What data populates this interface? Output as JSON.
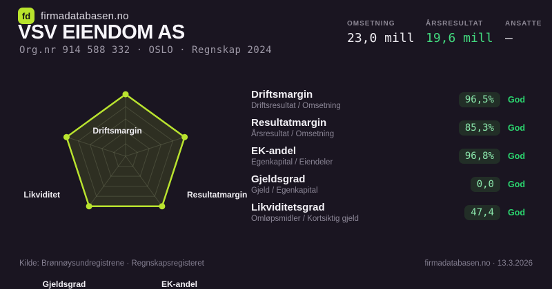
{
  "brand": {
    "logo_text": "fd",
    "site": "firmadatabasen.no"
  },
  "header": {
    "title": "VSV EIENDOM AS",
    "subtitle": "Org.nr 914 588 332 · OSLO · Regnskap 2024"
  },
  "topstats": [
    {
      "label": "OMSETNING",
      "value": "23,0 mill"
    },
    {
      "label": "ÅRSRESULTAT",
      "value": "19,6 mill"
    },
    {
      "label": "ANSATTE",
      "value": "–"
    }
  ],
  "chart_data": {
    "type": "radar",
    "axes": [
      "Driftsmargin",
      "Resultatmargin",
      "EK-andel",
      "Gjeldsgrad",
      "Likviditet"
    ],
    "values_normalized": [
      1,
      1,
      1,
      1,
      1
    ],
    "axis_metric_values": [
      "96,5%",
      "85,3%",
      "96,8%",
      "0,0",
      "47,4"
    ],
    "grid_levels": 5,
    "grid_color": "rgba(210,220,190,0.16)",
    "stroke": "#b9e32f",
    "fill": "rgba(185,227,47,0.13)",
    "legend_position": "none",
    "gridlines": true
  },
  "metrics": [
    {
      "name": "Driftsmargin",
      "formula": "Driftsresultat / Omsetning",
      "value": "96,5%",
      "rating": "God"
    },
    {
      "name": "Resultatmargin",
      "formula": "Årsresultat / Omsetning",
      "value": "85,3%",
      "rating": "God"
    },
    {
      "name": "EK-andel",
      "formula": "Egenkapital / Eiendeler",
      "value": "96,8%",
      "rating": "God"
    },
    {
      "name": "Gjeldsgrad",
      "formula": "Gjeld / Egenkapital",
      "value": "0,0",
      "rating": "God"
    },
    {
      "name": "Likviditetsgrad",
      "formula": "Omløpsmidler / Kortsiktig gjeld",
      "value": "47,4",
      "rating": "God"
    }
  ],
  "footer": {
    "source": "Kilde: Brønnøysundregistrene · Regnskapsregisteret",
    "brand_date": "firmadatabasen.no · 13.3.2026"
  },
  "colors": {
    "background": "#1a1521",
    "accent_chartreuse": "#b9e32f",
    "value_green": "#42d97e",
    "pill_bg": "#222e27",
    "pill_text": "#8ce8ad",
    "rating_green": "#2bd36e",
    "muted_text": "#8a8595"
  }
}
